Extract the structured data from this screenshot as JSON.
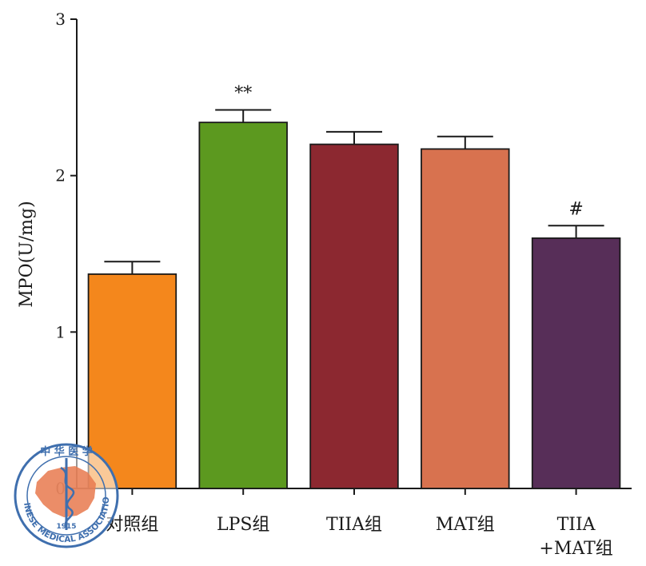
{
  "chart_data": {
    "type": "bar",
    "title": "",
    "xlabel": "",
    "ylabel": "MPO(U/mg)",
    "ylim": [
      0,
      3
    ],
    "yticks": [
      "0",
      "1",
      "2",
      "3"
    ],
    "categories": [
      [
        "对照组"
      ],
      [
        "LPS组"
      ],
      [
        "TIIA组"
      ],
      [
        "MAT组"
      ],
      [
        "TIIA",
        "+MAT组"
      ]
    ],
    "values": [
      1.37,
      2.34,
      2.2,
      2.17,
      1.6
    ],
    "errors": [
      0.08,
      0.08,
      0.08,
      0.08,
      0.08
    ],
    "annotations": [
      "",
      "**",
      "",
      "",
      "#"
    ],
    "colors": [
      "#F4871C",
      "#5C991F",
      "#8C2830",
      "#D8724F",
      "#572E58"
    ],
    "grid": false,
    "legend": "none"
  },
  "watermark": {
    "top_text": "中 华 医 学",
    "ring_text": "CHINESE MEDICAL ASSOCIATION",
    "year": "1915"
  }
}
